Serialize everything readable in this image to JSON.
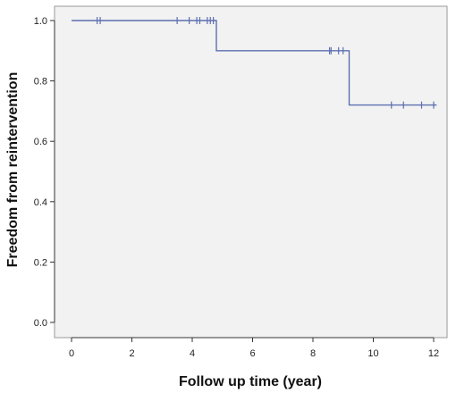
{
  "chart_data": {
    "type": "line",
    "step": true,
    "title": "",
    "xlabel": "Follow up time (year)",
    "ylabel": "Freedom from reintervention",
    "xlim": [
      0,
      12
    ],
    "ylim": [
      0,
      1.0
    ],
    "x_ticks": [
      0,
      2,
      4,
      6,
      8,
      10,
      12
    ],
    "y_ticks": [
      0.0,
      0.2,
      0.4,
      0.6,
      0.8,
      1.0
    ],
    "x_tick_labels": [
      "0",
      "2",
      "4",
      "6",
      "8",
      "10",
      "12"
    ],
    "y_tick_labels": [
      "0.0",
      "0.2",
      "0.4",
      "0.6",
      "0.8",
      "1.0"
    ],
    "grid": false,
    "series": [
      {
        "color": "#5c6fb0",
        "points": [
          {
            "x": 0,
            "y": 1.0
          },
          {
            "x": 4.8,
            "y": 1.0
          },
          {
            "x": 4.8,
            "y": 0.9
          },
          {
            "x": 9.2,
            "y": 0.9
          },
          {
            "x": 9.2,
            "y": 0.72
          },
          {
            "x": 12.1,
            "y": 0.72
          }
        ],
        "censored": [
          {
            "x": 0.85,
            "y": 1.0
          },
          {
            "x": 0.95,
            "y": 1.0
          },
          {
            "x": 3.5,
            "y": 1.0
          },
          {
            "x": 3.9,
            "y": 1.0
          },
          {
            "x": 4.15,
            "y": 1.0
          },
          {
            "x": 4.25,
            "y": 1.0
          },
          {
            "x": 4.5,
            "y": 1.0
          },
          {
            "x": 4.6,
            "y": 1.0
          },
          {
            "x": 4.7,
            "y": 1.0
          },
          {
            "x": 8.55,
            "y": 0.9
          },
          {
            "x": 8.6,
            "y": 0.9
          },
          {
            "x": 8.85,
            "y": 0.9
          },
          {
            "x": 9.0,
            "y": 0.9
          },
          {
            "x": 10.6,
            "y": 0.72
          },
          {
            "x": 11.0,
            "y": 0.72
          },
          {
            "x": 11.6,
            "y": 0.72
          },
          {
            "x": 12.0,
            "y": 0.72
          }
        ]
      }
    ],
    "plot_background": "#f2f2f2",
    "axis_color": "#333333"
  }
}
